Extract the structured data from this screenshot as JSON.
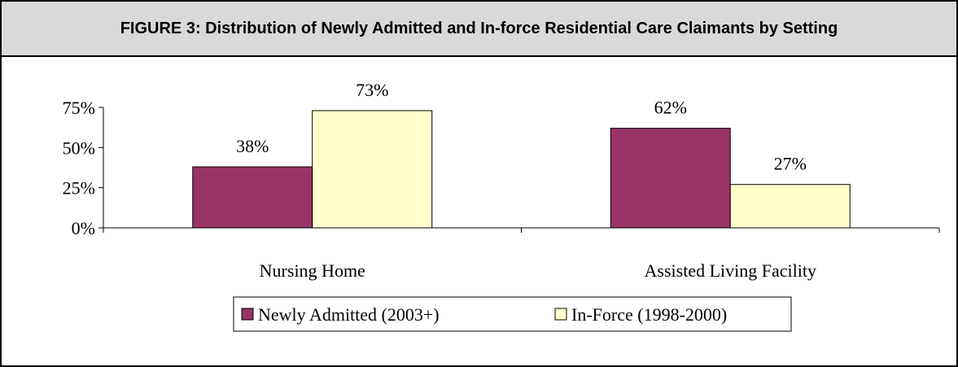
{
  "chart_data": {
    "type": "bar",
    "title": "FIGURE 3: Distribution of Newly Admitted and In-force Residential Care Claimants by Setting",
    "categories": [
      "Nursing Home",
      "Assisted Living Facility"
    ],
    "series": [
      {
        "name": "Newly Admitted (2003+)",
        "values": [
          38,
          62
        ],
        "labels": [
          "38%",
          "62%"
        ],
        "color": "#993366"
      },
      {
        "name": "In-Force (1998-2000)",
        "values": [
          73,
          27
        ],
        "labels": [
          "73%",
          "27%"
        ],
        "color": "#ffffcc"
      }
    ],
    "ylim": [
      0,
      75
    ],
    "yticks": [
      0,
      25,
      50,
      75
    ],
    "ytick_labels": [
      "0%",
      "25%",
      "50%",
      "75%"
    ],
    "grid": false,
    "legend_position": "bottom"
  }
}
